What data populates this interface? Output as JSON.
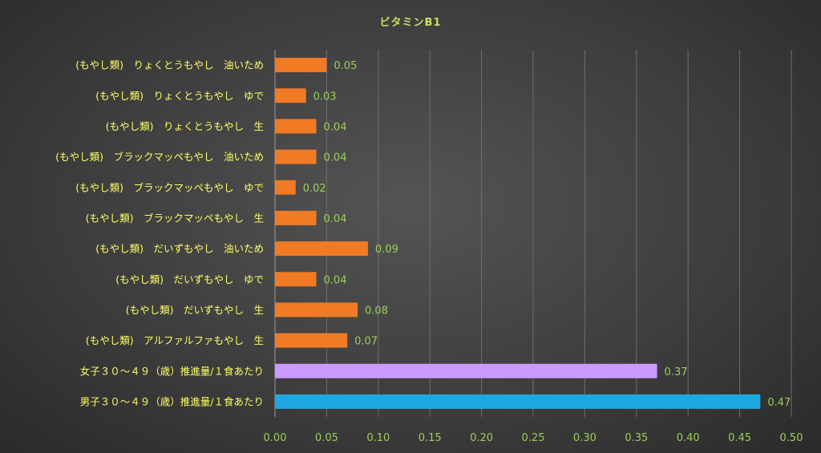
{
  "chart_data": {
    "type": "bar",
    "orientation": "horizontal",
    "title": "ビタミンB1",
    "xlabel": "",
    "ylabel": "",
    "xlim": [
      0,
      0.5
    ],
    "x_ticks": [
      "0.00",
      "0.05",
      "0.10",
      "0.15",
      "0.20",
      "0.25",
      "0.30",
      "0.35",
      "0.40",
      "0.45",
      "0.50"
    ],
    "grid": true,
    "legend": "none",
    "categories": [
      "(もやし類)　りょくとうもやし　油いため",
      "(もやし類)　りょくとうもやし　ゆで",
      "(もやし類)　りょくとうもやし　生",
      "(もやし類)　ブラックマッペもやし　油いため",
      "(もやし類)　ブラックマッペもやし　ゆで",
      "(もやし類)　ブラックマッペもやし　生",
      "(もやし類)　だいずもやし　油いため",
      "(もやし類)　だいずもやし　ゆで",
      "(もやし類)　だいずもやし　生",
      "(もやし類)　アルファルファもやし　生",
      "女子３０～４９（歳）推進量/１食あたり",
      "男子３０～４９（歳）推進量/１食あたり"
    ],
    "values": [
      0.05,
      0.03,
      0.04,
      0.04,
      0.02,
      0.04,
      0.09,
      0.04,
      0.08,
      0.07,
      0.37,
      0.47
    ],
    "value_labels": [
      "0.05",
      "0.03",
      "0.04",
      "0.04",
      "0.02",
      "0.04",
      "0.09",
      "0.04",
      "0.08",
      "0.07",
      "0.37",
      "0.47"
    ],
    "bar_colors": [
      "#f07b24",
      "#f07b24",
      "#f07b24",
      "#f07b24",
      "#f07b24",
      "#f07b24",
      "#f07b24",
      "#f07b24",
      "#f07b24",
      "#f07b24",
      "#cc99ff",
      "#1ea7e1"
    ]
  }
}
